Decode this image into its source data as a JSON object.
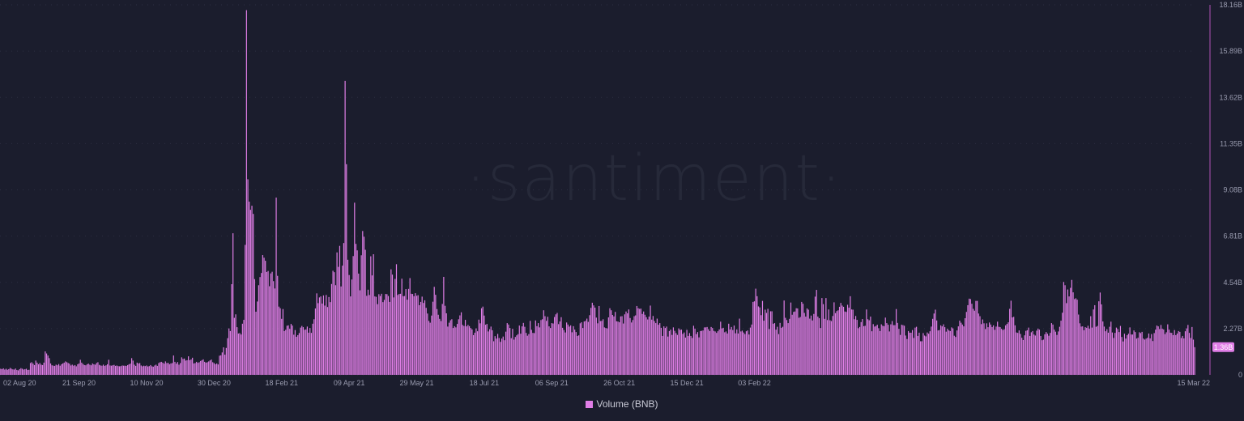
{
  "watermark": "·santiment·",
  "colors": {
    "background": "#1b1d2d",
    "bar": "#e07ee6",
    "axis_text": "#9a9cb0",
    "grid": "#2c2f42",
    "axis_line": "#b054b6"
  },
  "legend": {
    "label": "Volume (BNB)"
  },
  "last_value_badge": "1.36B",
  "chart_data": {
    "type": "bar",
    "x_start": "2020-07-25",
    "x_end": "2022-03-15",
    "x_ticks": [
      "02 Aug 20",
      "21 Sep 20",
      "10 Nov 20",
      "30 Dec 20",
      "18 Feb 21",
      "09 Apr 21",
      "29 May 21",
      "18 Jul 21",
      "06 Sep 21",
      "26 Oct 21",
      "15 Dec 21",
      "03 Feb 22",
      "15 Mar 22"
    ],
    "y_ticks": [
      "0",
      "2.27B",
      "4.54B",
      "6.81B",
      "9.08B",
      "11.35B",
      "13.62B",
      "15.89B",
      "18.16B"
    ],
    "ylim": [
      0,
      18.16
    ],
    "y_unit": "B",
    "grid": true,
    "legend_position": "bottom",
    "series": [
      {
        "name": "Volume (BNB)",
        "values": [
          0.3,
          0.28,
          0.32,
          0.26,
          0.3,
          0.25,
          0.28,
          0.34,
          0.3,
          0.27,
          0.26,
          0.31,
          0.24,
          0.22,
          0.28,
          0.33,
          0.3,
          0.26,
          0.28,
          0.3,
          0.24,
          0.25,
          0.58,
          0.62,
          0.55,
          0.48,
          0.7,
          0.6,
          0.52,
          0.58,
          0.5,
          0.48,
          0.6,
          1.15,
          1.05,
          0.95,
          0.82,
          0.56,
          0.47,
          0.45,
          0.44,
          0.5,
          0.47,
          0.53,
          0.45,
          0.52,
          0.56,
          0.6,
          0.66,
          0.62,
          0.58,
          0.55,
          0.46,
          0.5,
          0.45,
          0.48,
          0.42,
          0.52,
          0.56,
          0.74,
          0.6,
          0.53,
          0.48,
          0.47,
          0.52,
          0.55,
          0.5,
          0.47,
          0.56,
          0.52,
          0.5,
          0.58,
          0.62,
          0.49,
          0.46,
          0.45,
          0.5,
          0.44,
          0.47,
          0.52,
          0.74,
          0.46,
          0.45,
          0.47,
          0.49,
          0.44,
          0.46,
          0.43,
          0.42,
          0.43,
          0.46,
          0.45,
          0.45,
          0.44,
          0.48,
          0.52,
          0.55,
          0.82,
          0.7,
          0.5,
          0.44,
          0.6,
          0.56,
          0.58,
          0.46,
          0.42,
          0.45,
          0.43,
          0.46,
          0.41,
          0.43,
          0.48,
          0.42,
          0.4,
          0.46,
          0.5,
          0.44,
          0.58,
          0.62,
          0.64,
          0.6,
          0.55,
          0.66,
          0.58,
          0.59,
          0.52,
          0.56,
          0.58,
          0.95,
          0.64,
          0.55,
          0.63,
          0.5,
          0.58,
          0.86,
          0.78,
          0.8,
          0.7,
          0.72,
          0.91,
          0.72,
          0.76,
          0.84,
          0.56,
          0.58,
          0.64,
          0.59,
          0.62,
          0.68,
          0.72,
          0.76,
          0.64,
          0.6,
          0.62,
          0.66,
          0.71,
          0.75,
          0.62,
          0.58,
          0.52,
          0.56,
          0.51,
          0.94,
          0.96,
          1.1,
          1.35,
          0.99,
          1.32,
          1.8,
          2.28,
          2.15,
          4.45,
          6.95,
          2.8,
          2.97,
          2.34,
          2.03,
          2.05,
          1.98,
          2.51,
          2.7,
          6.38,
          17.9,
          9.6,
          8.5,
          8.1,
          8.3,
          7.9,
          4.7,
          3.1,
          3.6,
          4.4,
          4.8,
          5.0,
          5.88,
          5.75,
          5.6,
          5.05,
          5.1,
          4.35,
          4.98,
          5.06,
          4.6,
          4.24,
          8.7,
          4.86,
          3.35,
          3.27,
          2.75,
          3.23,
          2.15,
          2.21,
          2.41,
          2.43,
          2.26,
          2.5,
          2.42,
          1.97,
          2.2,
          1.87,
          1.95,
          2.05,
          2.32,
          2.4,
          2.34,
          2.21,
          2.23,
          2.37,
          2.07,
          2.3,
          2.06,
          2.51,
          2.73,
          3.26,
          4.0,
          3.52,
          3.8,
          3.85,
          3.5,
          3.9,
          3.4,
          3.92,
          3.33,
          3.82,
          3.57,
          4.46,
          5.11,
          5.04,
          4.4,
          6.01,
          5.3,
          6.33,
          4.34,
          5.36,
          6.47,
          14.43,
          10.34,
          5.65,
          4.9,
          3.85,
          4.68,
          5.83,
          8.45,
          6.43,
          6.11,
          4.97,
          4.15,
          5.87,
          7.06,
          6.78,
          6.14,
          3.88,
          4.18,
          3.92,
          5.82,
          4.88,
          5.92,
          3.85,
          3.83,
          3.47,
          3.96,
          3.87,
          3.98,
          3.57,
          3.68,
          3.97,
          3.96,
          3.87,
          3.58,
          5.18,
          4.92,
          3.8,
          4.71,
          5.43,
          3.92,
          3.97,
          3.98,
          4.72,
          3.86,
          3.87,
          4.21,
          3.69,
          4.22,
          4.75,
          3.98,
          3.97,
          3.86,
          4.01,
          3.88,
          3.91,
          3.42,
          3.58,
          3.84,
          3.53,
          3.66,
          3.29,
          3.01,
          2.65,
          2.56,
          2.91,
          3.59,
          4.32,
          3.93,
          3.23,
          2.95,
          2.75,
          2.64,
          3.48,
          4.81,
          3.39,
          3.02,
          2.37,
          2.56,
          2.68,
          2.73,
          2.3,
          2.39,
          2.33,
          2.5,
          2.73,
          2.92,
          3.07,
          2.45,
          2.4,
          2.7,
          2.38,
          2.45,
          2.39,
          2.3,
          2.23,
          1.95,
          2.07,
          2.28,
          2.14,
          2.71,
          2.53,
          3.27,
          3.35,
          2.91,
          2.46,
          2.5,
          2.13,
          2.24,
          2.37,
          2.19,
          1.65,
          1.9,
          1.78,
          2.01,
          1.81,
          1.62,
          1.78,
          1.88,
          1.7,
          2.12,
          2.54,
          2.47,
          2.3,
          1.8,
          2.26,
          1.73,
          1.86,
          1.94,
          2.0,
          2.42,
          2.02,
          2.38,
          2.55,
          2.36,
          2.06,
          1.92,
          2.0,
          2.65,
          2.21,
          2.06,
          2.05,
          2.67,
          2.39,
          2.54,
          2.33,
          2.69,
          2.73,
          3.17,
          2.88,
          2.65,
          2.85,
          2.38,
          2.3,
          2.54,
          2.52,
          2.84,
          2.97,
          3.04,
          2.49,
          2.62,
          2.83,
          2.31,
          2.2,
          2.08,
          2.57,
          2.47,
          2.37,
          2.43,
          2.09,
          2.39,
          2.22,
          2.1,
          1.91,
          1.94,
          2.53,
          2.58,
          2.3,
          2.62,
          2.65,
          2.76,
          2.6,
          2.93,
          3.29,
          3.54,
          3.41,
          3.3,
          2.81,
          2.53,
          3.38,
          2.64,
          2.65,
          2.73,
          2.33,
          2.3,
          2.28,
          2.82,
          3.27,
          3.17,
          2.94,
          2.87,
          3.09,
          2.63,
          2.62,
          2.58,
          2.87,
          2.88,
          2.52,
          2.97,
          3.11,
          3.02,
          3.21,
          2.79,
          2.57,
          2.69,
          2.88,
          2.92,
          3.38,
          3.27,
          3.24,
          3.25,
          2.99,
          3.11,
          2.95,
          2.83,
          2.72,
          2.86,
          3.4,
          2.71,
          2.89,
          2.64,
          2.54,
          2.76,
          2.46,
          2.54,
          2.31,
          1.91,
          2.38,
          2.3,
          2.37,
          1.88,
          2.15,
          2.22,
          1.96,
          2.33,
          2.16,
          2.05,
          1.96,
          2.28,
          2.21,
          2.22,
          2.01,
          2.08,
          1.83,
          2.21,
          1.91,
          2.05,
          1.91,
          1.81,
          2.41,
          2.27,
          2.0,
          2.1,
          1.84,
          2.15,
          2.16,
          2.18,
          2.33,
          2.33,
          2.35,
          2.24,
          2.15,
          2.35,
          2.3,
          2.16,
          2.13,
          2.06,
          2.14,
          2.23,
          2.61,
          2.28,
          2.31,
          2.09,
          2.13,
          2.03,
          2.51,
          2.23,
          2.35,
          2.2,
          2.42,
          2.04,
          2.23,
          2.03,
          2.76,
          2.13,
          2.17,
          2.08,
          2.0,
          2.14,
          2.18,
          1.98,
          2.32,
          2.47,
          3.58,
          3.61,
          4.23,
          3.86,
          3.36,
          3.31,
          2.93,
          3.63,
          2.66,
          3.2,
          3.04,
          3.24,
          2.25,
          3.12,
          3.12,
          2.51,
          2.54,
          2.22,
          2.36,
          2.0,
          2.55,
          2.31,
          2.36,
          3.65,
          2.8,
          2.69,
          2.54,
          2.75,
          3.55,
          2.95,
          3.09,
          3.11,
          3.27,
          3.26,
          2.8,
          2.84,
          3.58,
          3.49,
          3.04,
          2.86,
          3.26,
          3.2,
          2.76,
          2.91,
          2.67,
          2.99,
          3.84,
          4.17,
          2.86,
          2.78,
          2.3,
          3.77,
          3.47,
          2.75,
          3.77,
          2.69,
          3.21,
          2.68,
          2.64,
          2.89,
          3.56,
          3.03,
          3.13,
          3.17,
          3.34,
          3.53,
          3.4,
          3.34,
          3.11,
          3.09,
          3.44,
          3.3,
          3.86,
          3.21,
          3.2,
          2.73,
          2.89,
          2.7,
          2.29,
          2.35,
          2.59,
          2.74,
          2.39,
          2.41,
          3.21,
          2.73,
          2.68,
          2.86,
          2.14,
          2.49,
          2.37,
          2.4,
          2.46,
          2.29,
          2.15,
          2.48,
          2.41,
          2.39,
          2.81,
          2.54,
          2.46,
          2.13,
          2.48,
          2.64,
          2.44,
          2.44,
          3.23,
          2.55,
          2.26,
          1.96,
          2.46,
          2.44,
          2.41,
          1.93,
          1.76,
          2.15,
          2.07,
          2.07,
          2.2,
          1.81,
          2.32,
          2.36,
          1.91,
          2.07,
          1.65,
          1.65,
          2.05,
          1.93,
          1.89,
          2.08,
          2.02,
          2.14,
          2.37,
          2.75,
          3.01,
          3.2,
          2.67,
          2.18,
          2.2,
          2.43,
          2.38,
          2.48,
          2.34,
          2.12,
          2.26,
          2.18,
          2.15,
          2.33,
          2.28,
          1.92,
          1.86,
          2.18,
          2.38,
          2.66,
          2.56,
          2.47,
          2.38,
          2.78,
          3.09,
          3.42,
          3.74,
          3.72,
          3.49,
          3.24,
          3.15,
          3.63,
          3.63,
          3.01,
          2.88,
          2.49,
          2.72,
          2.53,
          2.25,
          2.53,
          2.34,
          2.57,
          2.47,
          2.35,
          2.43,
          2.21,
          2.37,
          2.61,
          2.36,
          2.34,
          2.26,
          2.2,
          2.24,
          2.43,
          2.5,
          2.58,
          3.24,
          3.64,
          2.82,
          2.85,
          2.43,
          2.08,
          2.06,
          2.18,
          2.01,
          1.82,
          1.71,
          1.94,
          2.16,
          2.19,
          2.32,
          1.91,
          2.09,
          2.15,
          1.98,
          1.93,
          2.17,
          2.27,
          2.22,
          1.91,
          1.7,
          1.73,
          1.99,
          2.1,
          2.02,
          1.92,
          2.06,
          2.54,
          2.47,
          2.22,
          2.12,
          1.96,
          2.13,
          2.36,
          2.66,
          3.05,
          4.56,
          4.4,
          3.52,
          4.19,
          3.85,
          4.27,
          4.66,
          4.05,
          3.72,
          3.76,
          3.69,
          2.96,
          2.53,
          2.37,
          2.38,
          2.19,
          2.34,
          2.31,
          2.41,
          2.27,
          2.88,
          2.32,
          3.21,
          3.42,
          2.36,
          2.4,
          3.61,
          4.04,
          3.46,
          2.62,
          2.37,
          2.14,
          2.24,
          2.07,
          2.36,
          2.61,
          2.08,
          1.81,
          2.06,
          2.32,
          2.25,
          2.1,
          2.4,
          1.86,
          1.64,
          2.02,
          1.78,
          1.95,
          2.02,
          2.33,
          1.98,
          1.98,
          2.18,
          2.1,
          1.78,
          1.82,
          2.09,
          2.05,
          2.11,
          1.78,
          1.73,
          1.78,
          1.82,
          2.03,
          1.79,
          2.0,
          1.66,
          2.05,
          2.22,
          2.42,
          2.38,
          2.25,
          2.45,
          2.26,
          2.23,
          2.0,
          2.09,
          2.48,
          2.22,
          2.07,
          2.06,
          1.95,
          2.2,
          1.95,
          2.03,
          2.15,
          2.11,
          1.81,
          1.91,
          1.79,
          2.14,
          2.28,
          2.45,
          2.06,
          1.81,
          2.35,
          1.73,
          1.36
        ]
      }
    ]
  }
}
